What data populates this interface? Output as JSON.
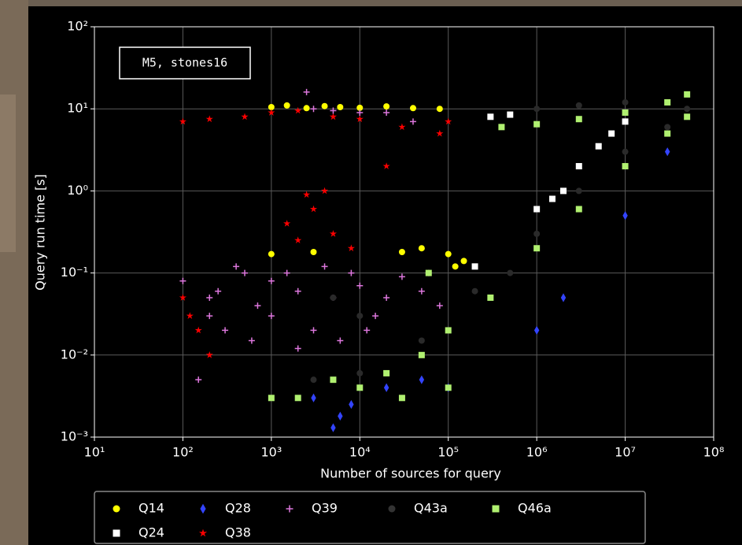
{
  "chart_data": {
    "type": "scatter",
    "xlabel": "Number of sources for query",
    "ylabel": "Query run time [s]",
    "annotation": "M5, stones16",
    "xscale": "log",
    "yscale": "log",
    "grid": true,
    "xlim": [
      10,
      100000000
    ],
    "ylim": [
      0.001,
      100
    ],
    "xticks": [
      {
        "value": 10,
        "label": "10¹"
      },
      {
        "value": 100,
        "label": "10²"
      },
      {
        "value": 1000,
        "label": "10³"
      },
      {
        "value": 10000,
        "label": "10⁴"
      },
      {
        "value": 100000,
        "label": "10⁵"
      },
      {
        "value": 1000000,
        "label": "10⁶"
      },
      {
        "value": 10000000,
        "label": "10⁷"
      },
      {
        "value": 100000000,
        "label": "10⁸"
      }
    ],
    "yticks": [
      {
        "value": 0.001,
        "label": "10⁻³"
      },
      {
        "value": 0.01,
        "label": "10⁻²"
      },
      {
        "value": 0.1,
        "label": "10⁻¹"
      },
      {
        "value": 1,
        "label": "10⁰"
      },
      {
        "value": 10,
        "label": "10¹"
      },
      {
        "value": 100,
        "label": "10²"
      }
    ],
    "series": [
      {
        "name": "Q14",
        "color": "#ffff00",
        "marker": "circle",
        "x": [
          1000,
          1500,
          2500,
          4000,
          6000,
          10000,
          20000,
          40000,
          80000,
          1000,
          3000,
          30000,
          50000,
          100000,
          150000,
          120000
        ],
        "y": [
          10.5,
          11,
          10.2,
          10.8,
          10.5,
          10.3,
          10.7,
          10.2,
          10,
          0.17,
          0.18,
          0.18,
          0.2,
          0.17,
          0.14,
          0.12
        ]
      },
      {
        "name": "Q24",
        "color": "#ffffff",
        "marker": "square",
        "x": [
          300000,
          500000,
          2000000,
          3000000,
          5000000,
          7000000,
          10000000,
          200000,
          1000000,
          1500000
        ],
        "y": [
          8,
          8.5,
          1,
          2,
          3.5,
          5,
          7,
          0.12,
          0.6,
          0.8
        ]
      },
      {
        "name": "Q28",
        "color": "#3344ff",
        "marker": "diamond",
        "x": [
          5000,
          8000,
          20000,
          50000,
          1000000,
          10000000,
          30000000,
          3000,
          100000,
          6000,
          2000000
        ],
        "y": [
          0.0013,
          0.0025,
          0.004,
          0.005,
          0.02,
          0.5,
          3,
          0.003,
          0.004,
          0.0018,
          0.05
        ]
      },
      {
        "name": "Q38",
        "color": "#ff0000",
        "marker": "star",
        "x": [
          100,
          200,
          500,
          1000,
          2000,
          5000,
          10000,
          30000,
          80000,
          100000,
          20000,
          1500,
          3000,
          5000,
          2000,
          100,
          150,
          200,
          120,
          8000,
          4000,
          2500
        ],
        "y": [
          7,
          7.5,
          8,
          9,
          9.5,
          8,
          7.5,
          6,
          5,
          7,
          2,
          0.4,
          0.6,
          0.3,
          0.25,
          0.05,
          0.02,
          0.01,
          0.03,
          0.2,
          1,
          0.9
        ]
      },
      {
        "name": "Q39",
        "color": "#dd77dd",
        "marker": "plus",
        "x": [
          2500,
          3000,
          5000,
          10000,
          20000,
          40000,
          100,
          200,
          500,
          1000,
          2000,
          5000,
          10000,
          20000,
          50000,
          80000,
          300,
          1000,
          3000,
          150,
          200,
          400,
          700,
          1500,
          4000,
          8000,
          15000,
          30000,
          60000,
          250,
          600,
          2000,
          6000,
          12000
        ],
        "y": [
          16,
          10,
          9.5,
          9,
          9,
          7,
          0.08,
          0.05,
          0.1,
          0.08,
          0.06,
          0.05,
          0.07,
          0.05,
          0.06,
          0.04,
          0.02,
          0.03,
          0.02,
          0.005,
          0.03,
          0.12,
          0.04,
          0.1,
          0.12,
          0.1,
          0.03,
          0.09,
          0.1,
          0.06,
          0.015,
          0.012,
          0.015,
          0.02
        ]
      },
      {
        "name": "Q43a",
        "color": "#2a2a2a",
        "marker": "circle",
        "x": [
          1000000,
          3000000,
          10000000,
          30000000,
          50000000,
          1000000,
          3000000,
          10000000,
          30000000,
          200000,
          500000,
          100000,
          50000,
          10000,
          3000,
          5000,
          10000
        ],
        "y": [
          10,
          11,
          12,
          12,
          10,
          0.3,
          1,
          3,
          6,
          0.06,
          0.1,
          0.02,
          0.015,
          0.006,
          0.005,
          0.05,
          0.03
        ]
      },
      {
        "name": "Q46a",
        "color": "#b0f070",
        "marker": "square",
        "x": [
          400000,
          1000000,
          3000000,
          10000000,
          30000000,
          50000000,
          1000000,
          3000000,
          10000000,
          30000000,
          50000000,
          100000,
          300000,
          50000,
          20000,
          10000,
          5000,
          2000,
          1000,
          30000,
          100000,
          60000
        ],
        "y": [
          6,
          6.5,
          7.5,
          9,
          12,
          15,
          0.2,
          0.6,
          2,
          5,
          8,
          0.02,
          0.05,
          0.01,
          0.006,
          0.004,
          0.005,
          0.003,
          0.003,
          0.003,
          0.004,
          0.1
        ]
      }
    ]
  }
}
